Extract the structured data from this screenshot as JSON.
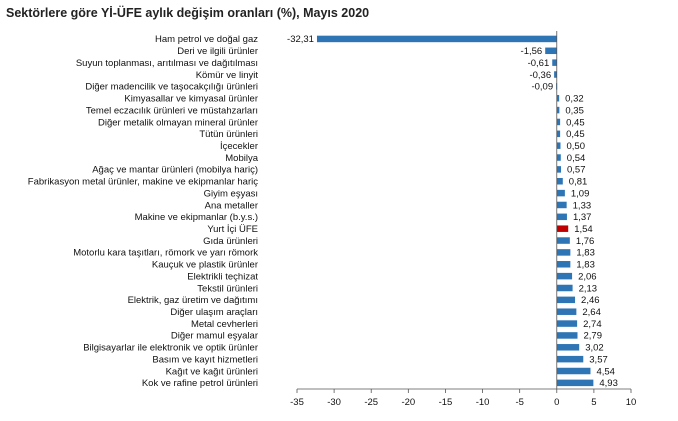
{
  "chart_data": {
    "type": "bar",
    "orientation": "horizontal",
    "title": "Sektörlere göre Yİ-ÜFE aylık değişim oranları (%), Mayıs 2020",
    "xlim": [
      -35,
      10
    ],
    "xticks": [
      "-35",
      "-30",
      "-25",
      "-20",
      "-15",
      "-10",
      "-5",
      "0",
      "5",
      "10"
    ],
    "xtick_values": [
      -35,
      -30,
      -25,
      -20,
      -15,
      -10,
      -5,
      0,
      5,
      10
    ],
    "grid": false,
    "colors": {
      "default": "#2e75b6",
      "highlight": "#c00000"
    },
    "categories": [
      "Ham petrol ve doğal gaz",
      "Deri ve ilgili ürünler",
      "Suyun toplanması, arıtılması ve dağıtılması",
      "Kömür ve linyit",
      "Diğer madencilik ve taşocakçılığı ürünleri",
      "Kimyasallar ve kimyasal ürünler",
      "Temel eczacılık ürünleri ve müstahzarları",
      "Diğer metalik olmayan mineral ürünler",
      "Tütün ürünleri",
      "İçecekler",
      "Mobilya",
      "Ağaç ve mantar ürünleri (mobilya hariç)",
      "Fabrikasyon metal ürünler, makine ve ekipmanlar hariç",
      "Giyim eşyası",
      "Ana metaller",
      "Makine ve ekipmanlar (b.y.s.)",
      "Yurt İçi ÜFE",
      "Gıda ürünleri",
      "Motorlu kara taşıtları, römork ve yarı römork",
      "Kauçuk ve plastik ürünler",
      "Elektrikli teçhizat",
      "Tekstil ürünleri",
      "Elektrik, gaz üretim ve dağıtımı",
      "Diğer ulaşım araçları",
      "Metal cevherleri",
      "Diğer mamul eşyalar",
      "Bilgisayarlar ile elektronik ve optik ürünler",
      "Basım ve kayıt hizmetleri",
      "Kağıt ve kağıt ürünleri",
      "Kok ve rafine petrol ürünleri"
    ],
    "values": [
      -32.31,
      -1.56,
      -0.61,
      -0.36,
      -0.09,
      0.32,
      0.35,
      0.45,
      0.45,
      0.5,
      0.54,
      0.57,
      0.81,
      1.09,
      1.33,
      1.37,
      1.54,
      1.76,
      1.83,
      1.83,
      2.06,
      2.13,
      2.46,
      2.64,
      2.74,
      2.79,
      3.02,
      3.57,
      4.54,
      4.93
    ],
    "value_labels": [
      "-32,31",
      "-1,56",
      "-0,61",
      "-0,36",
      "-0,09",
      "0,32",
      "0,35",
      "0,45",
      "0,45",
      "0,50",
      "0,54",
      "0,57",
      "0,81",
      "1,09",
      "1,33",
      "1,37",
      "1,54",
      "1,76",
      "1,83",
      "1,83",
      "2,06",
      "2,13",
      "2,46",
      "2,64",
      "2,74",
      "2,79",
      "3,02",
      "3,57",
      "4,54",
      "4,93"
    ],
    "highlight": [
      "Yurt İçi ÜFE"
    ]
  }
}
